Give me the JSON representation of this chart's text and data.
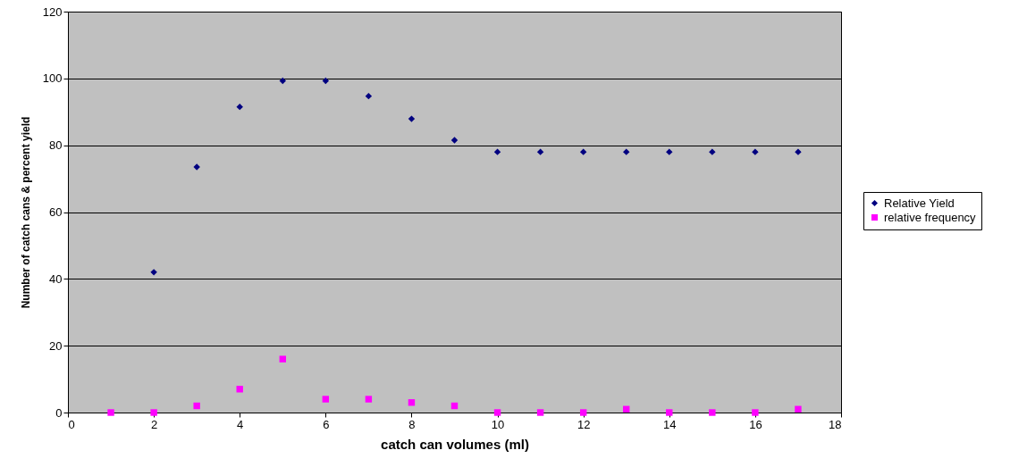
{
  "chart_data": {
    "type": "scatter",
    "xlabel": "catch can volumes (ml)",
    "ylabel": "Number of catch cans & percent yield",
    "x": [
      1,
      2,
      3,
      4,
      5,
      6,
      7,
      8,
      9,
      10,
      11,
      12,
      13,
      14,
      15,
      16,
      17
    ],
    "series": [
      {
        "name": "Relative  Yield",
        "color": "#000080",
        "marker": "diamond",
        "x": [
          2,
          3,
          4,
          5,
          6,
          7,
          8,
          9,
          10,
          11,
          12,
          13,
          14,
          15,
          16,
          17
        ],
        "values": [
          42,
          73.5,
          91.5,
          99.3,
          99.3,
          94.7,
          87.9,
          81.5,
          78,
          78,
          78,
          78,
          78,
          78,
          78,
          78
        ]
      },
      {
        "name": "relative frequency",
        "color": "#ff00ff",
        "marker": "square",
        "values": [
          0,
          0,
          2,
          7,
          16,
          4,
          4,
          3,
          2,
          0,
          0,
          0,
          1,
          0,
          0,
          0,
          1
        ]
      }
    ],
    "xlim": [
      0,
      18
    ],
    "xticks": [
      0,
      2,
      4,
      6,
      8,
      10,
      12,
      14,
      16,
      18
    ],
    "ylim": [
      0,
      120
    ],
    "yticks": [
      0,
      20,
      40,
      60,
      80,
      100,
      120
    ],
    "grid": "y",
    "legend": "right"
  }
}
